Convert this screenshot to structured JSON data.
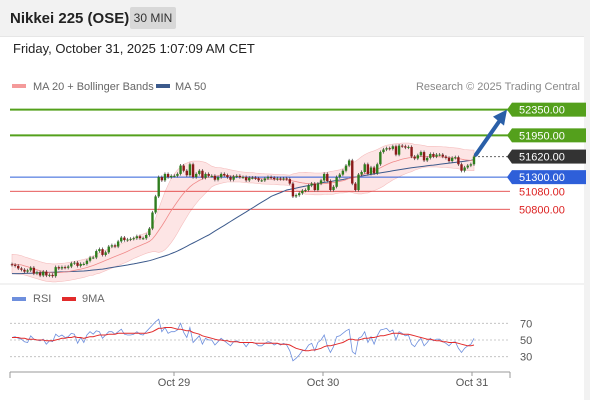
{
  "header": {
    "title": "Nikkei 225 (OSE)",
    "timeframe": "30 MIN",
    "datetime": "Friday, October 31, 2025 1:07:09 AM CET"
  },
  "legend": {
    "bollinger_label": "MA 20 + Bollinger Bands",
    "ma50_label": "MA 50",
    "copyright": "Research © 2025 Trading Central"
  },
  "rsi_legend": {
    "rsi_label": "RSI",
    "ma_label": "9MA"
  },
  "colors": {
    "green": "#54a01c",
    "blue": "#2e5fd9",
    "red": "#dd2222",
    "dark": "#333333",
    "ma50": "#3c5a8c",
    "bb": "#f4b7b7",
    "rsi": "#6e8fdd",
    "rsi_ma": "#e22b2b"
  },
  "chart_data": [
    {
      "type": "candlestick",
      "x_ticks": [
        "Oct 29",
        "Oct 30",
        "Oct 31"
      ],
      "levels": [
        {
          "value": 52350,
          "label": "52350.00",
          "kind": "resistance"
        },
        {
          "value": 51950,
          "label": "51950.00",
          "kind": "resistance"
        },
        {
          "value": 51620,
          "label": "51620.00",
          "kind": "last"
        },
        {
          "value": 51300,
          "label": "51300.00",
          "kind": "pivot"
        },
        {
          "value": 51080,
          "label": "51080.00",
          "kind": "support"
        },
        {
          "value": 50800,
          "label": "50800.00",
          "kind": "support"
        }
      ],
      "ylim": [
        49700,
        52500
      ],
      "arrow": {
        "from": 51620,
        "to": 52350
      },
      "close": [
        49935,
        49920,
        49880,
        49860,
        49830,
        49850,
        49890,
        49800,
        49820,
        49770,
        49830,
        49770,
        49780,
        49760,
        49900,
        49880,
        49900,
        49890,
        49910,
        49960,
        49970,
        49920,
        49950,
        49950,
        50000,
        50050,
        50050,
        50150,
        50180,
        50090,
        50130,
        50220,
        50240,
        50220,
        50300,
        50360,
        50320,
        50330,
        50340,
        50350,
        50380,
        50350,
        50350,
        50400,
        50500,
        50750,
        51000,
        51300,
        51250,
        51350,
        51300,
        51320,
        51320,
        51350,
        51480,
        51400,
        51330,
        51500,
        51300,
        51350,
        51400,
        51290,
        51350,
        51320,
        51320,
        51260,
        51300,
        51350,
        51330,
        51300,
        51260,
        51310,
        51320,
        51300,
        51300,
        51250,
        51290,
        51290,
        51280,
        51250,
        51250,
        51280,
        51300,
        51290,
        51270,
        51280,
        51270,
        51280,
        51270,
        51200,
        51000,
        51020,
        51050,
        51090,
        51100,
        51170,
        51200,
        51100,
        51200,
        51250,
        51350,
        51240,
        51100,
        51150,
        51300,
        51340,
        51400,
        51480,
        51560,
        51200,
        51100,
        51340,
        51380,
        51500,
        51350,
        51450,
        51360,
        51500,
        51690,
        51730,
        51750,
        51740,
        51780,
        51650,
        51790,
        51780,
        51760,
        51770,
        51620,
        51590,
        51640,
        51690,
        51560,
        51600,
        51660,
        51620,
        51650,
        51650,
        51620,
        51600,
        51550,
        51600,
        51610,
        51500,
        51400,
        51450,
        51480,
        51500,
        51620
      ],
      "ma20": [
        49950,
        49945,
        49940,
        49935,
        49920,
        49905,
        49890,
        49875,
        49860,
        49845,
        49830,
        49820,
        49815,
        49810,
        49810,
        49815,
        49820,
        49825,
        49830,
        49840,
        49850,
        49860,
        49870,
        49880,
        49895,
        49910,
        49925,
        49945,
        49965,
        49985,
        50005,
        50025,
        50045,
        50065,
        50085,
        50105,
        50125,
        50145,
        50170,
        50195,
        50215,
        50235,
        50255,
        50275,
        50300,
        50340,
        50400,
        50470,
        50540,
        50620,
        50700,
        50780,
        50850,
        50920,
        50990,
        51050,
        51100,
        51150,
        51190,
        51220,
        51250,
        51270,
        51290,
        51300,
        51310,
        51315,
        51320,
        51325,
        51325,
        51325,
        51320,
        51315,
        51310,
        51305,
        51300,
        51295,
        51290,
        51290,
        51285,
        51280,
        51275,
        51272,
        51270,
        51268,
        51265,
        51262,
        51260,
        51258,
        51255,
        51250,
        51240,
        51230,
        51220,
        51210,
        51205,
        51200,
        51198,
        51195,
        51195,
        51195,
        51200,
        51205,
        51210,
        51215,
        51225,
        51235,
        51245,
        51260,
        51280,
        51290,
        51295,
        51310,
        51330,
        51350,
        51365,
        51385,
        51400,
        51420,
        51445,
        51470,
        51495,
        51515,
        51535,
        51550,
        51565,
        51580,
        51590,
        51600,
        51605,
        51610,
        51615,
        51620,
        51620,
        51620,
        51620,
        51620,
        51618,
        51615,
        51612,
        51610,
        51605,
        51600,
        51595,
        51590,
        51580,
        51570,
        51565,
        51560,
        51560
      ],
      "bb_width": [
        150,
        150,
        150,
        145,
        140,
        140,
        140,
        140,
        140,
        140,
        140,
        140,
        140,
        140,
        140,
        140,
        140,
        140,
        140,
        140,
        140,
        140,
        140,
        140,
        140,
        140,
        150,
        150,
        160,
        160,
        160,
        160,
        160,
        160,
        160,
        160,
        160,
        160,
        160,
        160,
        160,
        160,
        160,
        160,
        170,
        200,
        260,
        340,
        400,
        450,
        480,
        500,
        500,
        490,
        470,
        450,
        420,
        390,
        360,
        330,
        300,
        270,
        240,
        200,
        160,
        140,
        130,
        120,
        110,
        100,
        95,
        90,
        85,
        80,
        80,
        80,
        80,
        80,
        80,
        80,
        80,
        80,
        80,
        80,
        80,
        80,
        80,
        80,
        80,
        80,
        110,
        130,
        150,
        160,
        170,
        170,
        170,
        170,
        170,
        170,
        170,
        170,
        180,
        180,
        180,
        180,
        190,
        200,
        210,
        230,
        250,
        270,
        290,
        300,
        310,
        310,
        310,
        310,
        310,
        310,
        300,
        290,
        280,
        270,
        260,
        250,
        240,
        230,
        220,
        200,
        190,
        180,
        170,
        160,
        160,
        160,
        160,
        160,
        160,
        160,
        160,
        160,
        160,
        160,
        160,
        160,
        160,
        160,
        160
      ],
      "ma50": [
        49800,
        49800,
        49800,
        49800,
        49802,
        49804,
        49806,
        49808,
        49810,
        49812,
        49814,
        49816,
        49818,
        49820,
        49822,
        49824,
        49826,
        49828,
        49830,
        49832,
        49834,
        49836,
        49838,
        49840,
        49845,
        49850,
        49855,
        49860,
        49865,
        49870,
        49878,
        49886,
        49894,
        49902,
        49910,
        49918,
        49926,
        49934,
        49942,
        49950,
        49960,
        49970,
        49980,
        49990,
        50000,
        50015,
        50030,
        50045,
        50060,
        50075,
        50090,
        50110,
        50130,
        50150,
        50175,
        50200,
        50225,
        50250,
        50275,
        50300,
        50325,
        50350,
        50375,
        50400,
        50430,
        50460,
        50490,
        50520,
        50550,
        50580,
        50610,
        50640,
        50670,
        50700,
        50730,
        50760,
        50790,
        50820,
        50850,
        50880,
        50910,
        50940,
        50970,
        51000,
        51020,
        51040,
        51060,
        51080,
        51100,
        51110,
        51120,
        51130,
        51140,
        51150,
        51160,
        51170,
        51180,
        51190,
        51200,
        51210,
        51218,
        51225,
        51232,
        51240,
        51248,
        51256,
        51264,
        51272,
        51280,
        51290,
        51300,
        51310,
        51318,
        51326,
        51334,
        51342,
        51350,
        51358,
        51366,
        51374,
        51382,
        51390,
        51398,
        51406,
        51414,
        51422,
        51430,
        51438,
        51445,
        51452,
        51458,
        51464,
        51470,
        51476,
        51482,
        51488,
        51494,
        51500,
        51506,
        51512,
        51518,
        51524,
        51530,
        51536,
        51542,
        51548,
        51554,
        51560,
        51570
      ]
    },
    {
      "type": "line",
      "name": "RSI",
      "y_ticks": [
        70,
        50,
        30
      ],
      "ylim": [
        20,
        80
      ],
      "rsi": [
        53,
        54,
        52,
        51,
        48,
        47,
        55,
        51,
        50,
        49,
        51,
        45,
        49,
        48,
        57,
        54,
        56,
        53,
        54,
        58,
        57,
        46,
        53,
        47,
        56,
        60,
        57,
        61,
        60,
        52,
        56,
        60,
        60,
        57,
        60,
        63,
        57,
        56,
        56,
        57,
        60,
        57,
        56,
        60,
        64,
        68,
        72,
        75,
        60,
        65,
        58,
        60,
        60,
        62,
        70,
        59,
        53,
        65,
        47,
        51,
        55,
        45,
        52,
        50,
        50,
        44,
        48,
        52,
        49,
        46,
        43,
        48,
        49,
        47,
        47,
        42,
        47,
        47,
        46,
        43,
        43,
        46,
        48,
        47,
        44,
        46,
        44,
        46,
        44,
        37,
        25,
        28,
        32,
        37,
        38,
        44,
        46,
        37,
        47,
        50,
        56,
        43,
        35,
        42,
        54,
        55,
        58,
        61,
        63,
        36,
        33,
        52,
        54,
        60,
        47,
        54,
        45,
        55,
        62,
        63,
        64,
        60,
        62,
        50,
        60,
        58,
        55,
        56,
        45,
        42,
        48,
        52,
        43,
        47,
        52,
        49,
        51,
        51,
        48,
        46,
        43,
        47,
        48,
        40,
        35,
        40,
        43,
        45,
        52
      ],
      "rsi_ma": [
        53,
        53,
        53,
        52,
        52,
        51,
        51,
        51,
        50,
        50,
        50,
        49,
        49,
        49,
        50,
        51,
        52,
        52,
        53,
        53,
        54,
        53,
        53,
        52,
        53,
        54,
        54,
        55,
        56,
        56,
        56,
        57,
        57,
        57,
        58,
        58,
        58,
        58,
        58,
        58,
        58,
        58,
        58,
        58,
        59,
        60,
        62,
        64,
        64,
        65,
        65,
        65,
        64,
        63,
        63,
        62,
        61,
        61,
        59,
        58,
        57,
        55,
        54,
        53,
        52,
        51,
        50,
        50,
        49,
        49,
        48,
        48,
        48,
        47,
        47,
        47,
        47,
        47,
        46,
        46,
        46,
        46,
        46,
        46,
        46,
        46,
        45,
        45,
        45,
        44,
        42,
        40,
        39,
        38,
        37,
        37,
        38,
        38,
        39,
        40,
        42,
        43,
        43,
        44,
        45,
        46,
        47,
        49,
        51,
        51,
        50,
        50,
        51,
        52,
        52,
        53,
        53,
        54,
        55,
        55,
        56,
        57,
        58,
        58,
        58,
        57,
        57,
        57,
        56,
        55,
        54,
        53,
        52,
        51,
        51,
        50,
        49,
        49,
        48,
        48,
        47,
        47,
        47,
        46,
        45,
        44,
        43,
        43,
        44
      ]
    }
  ]
}
